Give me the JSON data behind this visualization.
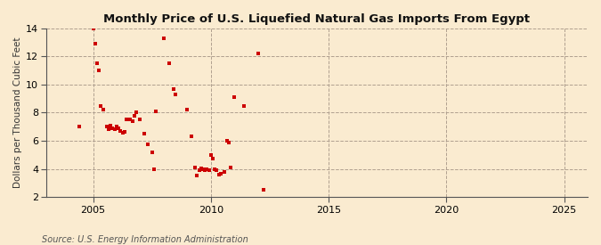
{
  "title": "Monthly Price of U.S. Liquefied Natural Gas Imports From Egypt",
  "ylabel": "Dollars per Thousand Cubic Feet",
  "source": "Source: U.S. Energy Information Administration",
  "xlim": [
    2003,
    2026
  ],
  "ylim": [
    2,
    14
  ],
  "xticks": [
    2005,
    2010,
    2015,
    2020,
    2025
  ],
  "yticks": [
    2,
    4,
    6,
    8,
    10,
    12,
    14
  ],
  "background_color": "#faebd0",
  "marker_color": "#cc0000",
  "x_data": [
    2004.42,
    2005.0,
    2005.08,
    2005.17,
    2005.25,
    2005.33,
    2005.42,
    2005.58,
    2005.67,
    2005.75,
    2005.83,
    2005.92,
    2006.0,
    2006.08,
    2006.17,
    2006.25,
    2006.33,
    2006.42,
    2006.58,
    2006.67,
    2006.75,
    2006.83,
    2007.0,
    2007.17,
    2007.33,
    2007.5,
    2007.58,
    2007.67,
    2008.0,
    2008.25,
    2008.42,
    2008.5,
    2009.0,
    2009.17,
    2009.33,
    2009.42,
    2009.5,
    2009.58,
    2009.67,
    2009.75,
    2009.83,
    2009.92,
    2010.0,
    2010.08,
    2010.17,
    2010.25,
    2010.33,
    2010.42,
    2010.58,
    2010.67,
    2010.75,
    2010.83,
    2011.0,
    2011.42,
    2012.0,
    2012.25
  ],
  "y_data": [
    7.0,
    14.0,
    12.9,
    11.5,
    11.0,
    8.5,
    8.2,
    7.0,
    6.8,
    7.05,
    6.9,
    6.85,
    7.0,
    6.9,
    6.7,
    6.6,
    6.65,
    7.5,
    7.5,
    7.4,
    7.75,
    8.05,
    7.5,
    6.5,
    5.75,
    5.2,
    4.0,
    8.1,
    13.3,
    11.5,
    9.7,
    9.3,
    8.2,
    6.3,
    4.1,
    3.5,
    3.9,
    4.05,
    4.0,
    3.9,
    4.0,
    3.9,
    5.0,
    4.7,
    4.0,
    3.9,
    3.6,
    3.65,
    3.8,
    6.0,
    5.9,
    4.1,
    9.1,
    8.5,
    12.2,
    2.5
  ]
}
